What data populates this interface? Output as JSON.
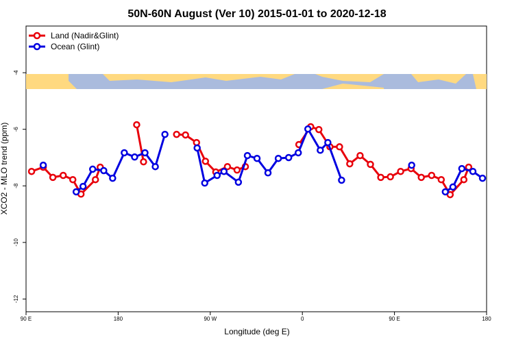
{
  "chart_data": {
    "type": "line",
    "title": "50N-60N August (Ver 10)   2015-01-01 to 2020-12-18",
    "x_label": "Longitude (deg E)",
    "y_label": "XCO2 - MLO trend (ppm)",
    "xlim": [
      90,
      540
    ],
    "xticks": [
      {
        "value": 90,
        "label": "90 E"
      },
      {
        "value": 180,
        "label": "180"
      },
      {
        "value": 270,
        "label": "90 W"
      },
      {
        "value": 360,
        "label": "0"
      },
      {
        "value": 450,
        "label": "90 E"
      },
      {
        "value": 540,
        "label": "180"
      }
    ],
    "ylim": [
      -12.45,
      -2.35
    ],
    "yticks": [
      -4,
      -6,
      -8,
      -10,
      -12
    ],
    "legend": "top-left",
    "series": [
      {
        "name": "Land (Nadir&Glint)",
        "color": "#e8000b",
        "x": [
          95.4,
          106.8,
          116.2,
          126.3,
          135.7,
          143.7,
          157.8,
          162.5,
          null,
          198.1,
          204.8,
          null,
          237.1,
          245.8,
          256.6,
          265.3,
          275.4,
          286.8,
          296.2,
          304.3,
          null,
          356.6,
          368.1,
          376.1,
          386.9,
          396.3,
          406.3,
          416.4,
          426.5,
          436.6,
          446.0,
          456.0,
          466.2,
          476.2,
          486.3,
          495.7,
          504.4,
          517.8,
          522.5
        ],
        "values": [
          -7.49,
          -7.34,
          -7.7,
          -7.63,
          -7.78,
          -8.29,
          -7.78,
          -7.34,
          null,
          -5.84,
          -7.15,
          null,
          -6.18,
          -6.2,
          -6.47,
          -7.13,
          -7.51,
          -7.32,
          -7.44,
          -7.32,
          null,
          -6.54,
          -5.91,
          -6.01,
          -6.62,
          -6.62,
          -7.22,
          -6.93,
          -7.24,
          -7.7,
          -7.68,
          -7.49,
          -7.39,
          -7.7,
          -7.63,
          -7.78,
          -8.31,
          -7.78,
          -7.34
        ]
      },
      {
        "name": "Ocean (Glint)",
        "color": "#0000e0",
        "x": [
          106.8,
          null,
          139.0,
          145.7,
          155.1,
          165.9,
          174.6,
          186.0,
          196.1,
          206.2,
          216.3,
          225.7,
          null,
          257.2,
          264.6,
          276.7,
          283.4,
          297.5,
          306.3,
          315.7,
          326.4,
          336.5,
          346.6,
          356.0,
          365.4,
          377.5,
          384.9,
          398.3,
          null,
          466.8,
          null,
          499.7,
          507.1,
          515.8,
          526.6,
          536.0
        ],
        "values": [
          -7.27,
          null,
          -8.21,
          -8.02,
          -7.41,
          -7.46,
          -7.73,
          -6.83,
          -6.98,
          -6.83,
          -7.32,
          -6.18,
          null,
          -6.66,
          -7.9,
          -7.63,
          -7.49,
          -7.87,
          -6.93,
          -7.03,
          -7.54,
          -7.03,
          -7.0,
          -6.83,
          -5.99,
          -6.74,
          -6.47,
          -7.8,
          null,
          -7.27,
          null,
          -8.21,
          -8.04,
          -7.39,
          -7.49,
          -7.73
        ]
      }
    ]
  }
}
